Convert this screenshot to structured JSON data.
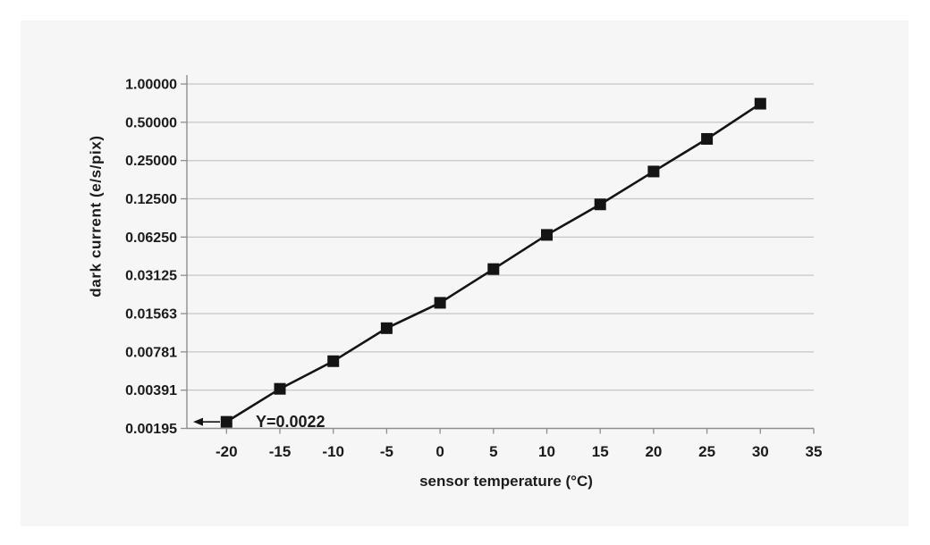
{
  "colors": {
    "page_bg": "#ffffff",
    "card_bg": "#f6f6f6",
    "gridline": "#c5c5c5",
    "axis": "#8e8e8e",
    "text": "#1b1b1b",
    "series": "#141414"
  },
  "chart_data": {
    "type": "line",
    "title": "",
    "xlabel": "sensor temperature (°C)",
    "ylabel": "dark current (e/s/pix)",
    "y_scale": "log2",
    "grid": "horizontal-only",
    "legend": "none",
    "marker": "square",
    "xlim": [
      -23.7,
      35
    ],
    "ylim": [
      0.001953125,
      1.0
    ],
    "x": [
      -20,
      -15,
      -10,
      -5,
      0,
      5,
      10,
      15,
      20,
      25,
      30
    ],
    "y": [
      0.0022,
      0.004,
      0.0066,
      0.012,
      0.019,
      0.035,
      0.065,
      0.113,
      0.205,
      0.37,
      0.7
    ],
    "x_ticks": [
      "-20",
      "-15",
      "-10",
      "-5",
      "0",
      "5",
      "10",
      "15",
      "20",
      "25",
      "30",
      "35"
    ],
    "x_tick_values": [
      -20,
      -15,
      -10,
      -5,
      0,
      5,
      10,
      15,
      20,
      25,
      30,
      35
    ],
    "y_ticks": [
      {
        "label": "1.00000",
        "value": 1.0
      },
      {
        "label": "0.50000",
        "value": 0.5
      },
      {
        "label": "0.25000",
        "value": 0.25
      },
      {
        "label": "0.12500",
        "value": 0.125
      },
      {
        "label": "0.06250",
        "value": 0.0625
      },
      {
        "label": "0.03125",
        "value": 0.03125
      },
      {
        "label": "0.01563",
        "value": 0.015625
      },
      {
        "label": "0.00781",
        "value": 0.0078125
      },
      {
        "label": "0.00391",
        "value": 0.00390625
      },
      {
        "label": "0.00195",
        "value": 0.001953125
      }
    ],
    "annotation": {
      "text": "Y=0.0022",
      "target_x": -20,
      "target_y": 0.0022,
      "arrow_direction": "left"
    }
  }
}
